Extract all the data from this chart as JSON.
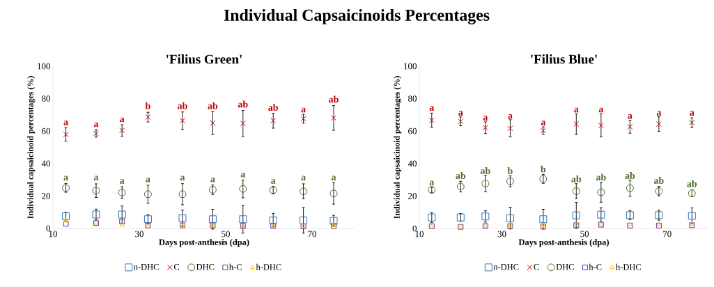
{
  "chart_data": [
    {
      "type": "scatter",
      "title": "Individual Capsaicinoids Percentages",
      "subtitle": "'Filius Green'",
      "xlabel": "Days post-anthesis (dpa)",
      "ylabel": "Individual capsaicinoid percentages (%)",
      "x": [
        13,
        20,
        26,
        32,
        40,
        47,
        54,
        61,
        68,
        75
      ],
      "xlim": [
        10,
        80
      ],
      "xticks": [
        10,
        30,
        50,
        70
      ],
      "ylim": [
        0,
        100
      ],
      "yticks": [
        0,
        20,
        40,
        60,
        80,
        100
      ],
      "legend": "bottom",
      "series": [
        {
          "name": "n-DHC",
          "color": "#2e75b6",
          "marker": "square",
          "values": [
            7.6,
            8.6,
            8.6,
            5.7,
            6.4,
            5.7,
            5.7,
            5.0,
            5.0,
            4.7
          ],
          "errors": [
            2.4,
            3.3,
            5.3,
            2.9,
            5.0,
            6.1,
            8.6,
            4.3,
            7.9,
            3.4
          ]
        },
        {
          "name": "C",
          "color": "#c00000",
          "marker": "cross",
          "values": [
            57.9,
            58.6,
            60.4,
            68.6,
            66.4,
            65.0,
            64.7,
            66.4,
            67.6,
            68.1
          ],
          "errors": [
            4.1,
            2.3,
            3.5,
            3.0,
            5.4,
            7.1,
            8.0,
            4.6,
            2.7,
            7.6
          ]
        },
        {
          "name": "DHC",
          "color": "#4a6b2a",
          "marker": "circle",
          "values": [
            25.0,
            23.3,
            22.1,
            21.1,
            21.1,
            23.9,
            24.4,
            23.6,
            22.9,
            21.6
          ],
          "errors": [
            2.7,
            4.2,
            3.6,
            5.6,
            6.5,
            3.0,
            5.5,
            2.3,
            4.6,
            6.6
          ]
        },
        {
          "name": "h-C",
          "color": "#7030a0",
          "marker": "square",
          "values": [
            2.9,
            3.3,
            4.3,
            1.9,
            1.9,
            1.9,
            1.6,
            1.6,
            1.3,
            1.6
          ]
        },
        {
          "name": "h-DHC",
          "color": "#ffc000",
          "marker": "triangle",
          "values": [
            4.7,
            3.3,
            2.1,
            1.4,
            1.4,
            1.9,
            1.4,
            1.4,
            1.4,
            1.9
          ]
        }
      ],
      "annotations": [
        {
          "text": "a",
          "x": 13,
          "y": 63
        },
        {
          "text": "a",
          "x": 20,
          "y": 62
        },
        {
          "text": "a",
          "x": 26,
          "y": 65
        },
        {
          "text": "b",
          "x": 32,
          "y": 73
        },
        {
          "text": "ab",
          "x": 40,
          "y": 73
        },
        {
          "text": "ab",
          "x": 47,
          "y": 73
        },
        {
          "text": "ab",
          "x": 54,
          "y": 74
        },
        {
          "text": "ab",
          "x": 61,
          "y": 72
        },
        {
          "text": "a",
          "x": 68,
          "y": 71
        },
        {
          "text": "ab",
          "x": 75,
          "y": 77
        },
        {
          "text": "a",
          "x": 13,
          "y": 29
        },
        {
          "text": "a",
          "x": 20,
          "y": 29
        },
        {
          "text": "a",
          "x": 26,
          "y": 27
        },
        {
          "text": "a",
          "x": 32,
          "y": 28
        },
        {
          "text": "a",
          "x": 40,
          "y": 29
        },
        {
          "text": "a",
          "x": 47,
          "y": 28
        },
        {
          "text": "a",
          "x": 54,
          "y": 31
        },
        {
          "text": "a",
          "x": 61,
          "y": 27
        },
        {
          "text": "a",
          "x": 68,
          "y": 29
        },
        {
          "text": "a",
          "x": 75,
          "y": 29
        }
      ]
    },
    {
      "type": "scatter",
      "subtitle": "'Filius Blue'",
      "xlabel": "Days post-anthesis (dpa)",
      "ylabel": "Individual capsaicinoid percentages (%)",
      "x": [
        13,
        20,
        26,
        32,
        40,
        48,
        54,
        61,
        68,
        76
      ],
      "xlim": [
        10,
        80
      ],
      "xticks": [
        10,
        30,
        50,
        70
      ],
      "ylim": [
        0,
        100
      ],
      "yticks": [
        0,
        20,
        40,
        60,
        80,
        100
      ],
      "legend": "bottom",
      "series": [
        {
          "name": "n-DHC",
          "color": "#2e75b6",
          "marker": "square",
          "values": [
            6.8,
            6.8,
            7.4,
            6.4,
            5.7,
            8.1,
            8.5,
            8.2,
            8.2,
            7.8
          ],
          "errors": [
            3.1,
            2.4,
            3.5,
            6.7,
            6.1,
            8.0,
            4.3,
            2.8,
            3.1,
            4.9
          ]
        },
        {
          "name": "C",
          "color": "#c00000",
          "marker": "cross",
          "values": [
            66.7,
            66.0,
            62.1,
            61.7,
            60.3,
            64.3,
            63.5,
            62.7,
            64.3,
            65.2
          ],
          "errors": [
            4.4,
            2.7,
            3.6,
            5.3,
            2.3,
            6.4,
            7.1,
            4.0,
            4.5,
            3.0
          ]
        },
        {
          "name": "DHC",
          "color": "#4a6b2a",
          "marker": "circle",
          "values": [
            23.8,
            25.8,
            27.7,
            29.1,
            30.5,
            23.0,
            22.3,
            24.8,
            23.0,
            21.7
          ],
          "errors": [
            1.6,
            3.3,
            5.0,
            3.4,
            2.7,
            4.6,
            6.1,
            5.0,
            2.9,
            2.1
          ]
        },
        {
          "name": "h-C",
          "color": "#7030a0",
          "marker": "square",
          "values": [
            1.4,
            1.0,
            1.5,
            1.5,
            1.2,
            2.0,
            2.3,
            1.8,
            1.8,
            2.0
          ]
        },
        {
          "name": "h-DHC",
          "color": "#ffc000",
          "marker": "triangle",
          "values": [
            1.0,
            1.0,
            1.5,
            1.8,
            2.0,
            2.5,
            2.5,
            2.5,
            2.5,
            2.5
          ]
        }
      ],
      "annotations": [
        {
          "text": "a",
          "x": 13,
          "y": 72
        },
        {
          "text": "a",
          "x": 20,
          "y": 69
        },
        {
          "text": "a",
          "x": 26,
          "y": 66
        },
        {
          "text": "a",
          "x": 32,
          "y": 67
        },
        {
          "text": "a",
          "x": 40,
          "y": 63
        },
        {
          "text": "a",
          "x": 48,
          "y": 71
        },
        {
          "text": "a",
          "x": 54,
          "y": 71
        },
        {
          "text": "a",
          "x": 61,
          "y": 67
        },
        {
          "text": "a",
          "x": 68,
          "y": 69
        },
        {
          "text": "a",
          "x": 76,
          "y": 69
        },
        {
          "text": "a",
          "x": 13,
          "y": 26
        },
        {
          "text": "ab",
          "x": 20,
          "y": 30
        },
        {
          "text": "ab",
          "x": 26,
          "y": 33
        },
        {
          "text": "b",
          "x": 32,
          "y": 33
        },
        {
          "text": "b",
          "x": 40,
          "y": 34
        },
        {
          "text": "ab",
          "x": 48,
          "y": 28
        },
        {
          "text": "ab",
          "x": 54,
          "y": 29
        },
        {
          "text": "ab",
          "x": 61,
          "y": 30
        },
        {
          "text": "ab",
          "x": 68,
          "y": 27
        },
        {
          "text": "ab",
          "x": 76,
          "y": 25
        }
      ]
    }
  ]
}
